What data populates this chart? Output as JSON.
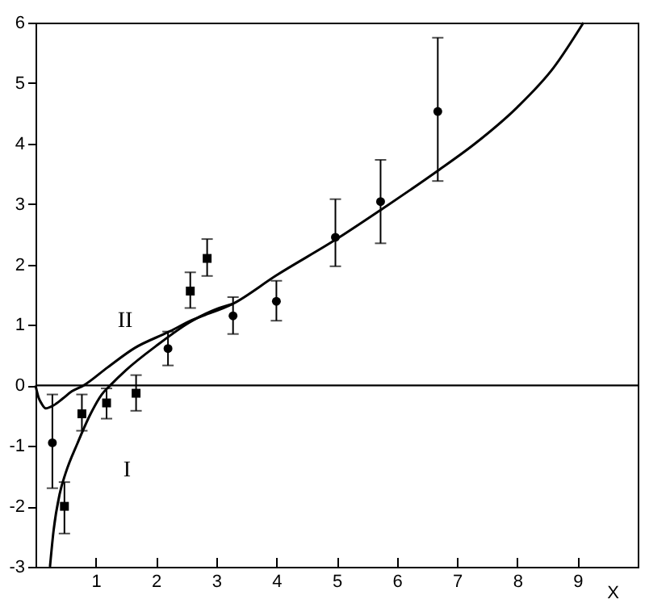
{
  "chart_data": {
    "type": "scatter",
    "xlabel": "X",
    "xlim": [
      0,
      10
    ],
    "xticks": [
      1,
      2,
      3,
      4,
      5,
      6,
      7,
      8,
      9
    ],
    "ylim": [
      -3,
      6
    ],
    "yticks": [
      -3,
      -2,
      -1,
      0,
      1,
      2,
      3,
      4,
      5,
      6
    ],
    "grid": false,
    "series": [
      {
        "marker": "circle",
        "color": "#000000",
        "x": [
          0.28,
          2.2,
          3.28,
          4.0,
          4.98,
          5.73,
          6.68
        ],
        "values": [
          -0.95,
          0.61,
          1.15,
          1.39,
          2.45,
          3.04,
          4.53
        ],
        "errors": [
          [
            -1.7,
            -0.15
          ],
          [
            0.33,
            0.89
          ],
          [
            0.85,
            1.46
          ],
          [
            1.07,
            1.73
          ],
          [
            1.97,
            3.08
          ],
          [
            2.35,
            3.73
          ],
          [
            3.38,
            5.75
          ]
        ]
      },
      {
        "marker": "square",
        "color": "#000000",
        "x": [
          0.48,
          0.77,
          1.18,
          1.67,
          2.57,
          2.85
        ],
        "values": [
          -2.0,
          -0.47,
          -0.29,
          -0.13,
          1.56,
          2.1
        ],
        "errors": [
          [
            -2.45,
            -1.6
          ],
          [
            -0.75,
            -0.15
          ],
          [
            -0.55,
            -0.05
          ],
          [
            -0.42,
            0.17
          ],
          [
            1.28,
            1.87
          ],
          [
            1.81,
            2.42
          ]
        ]
      },
      {
        "type": "line",
        "name": "II",
        "color": "#000000",
        "x": [
          0,
          0.05,
          0.1,
          0.17,
          0.3,
          0.45,
          0.6,
          0.8,
          1.2,
          1.65,
          2.2,
          2.6,
          3.28,
          4.0,
          5.0,
          5.73,
          6.68,
          7.3,
          8.0,
          8.6,
          9.1
        ],
        "values": [
          0,
          -0.2,
          -0.3,
          -0.38,
          -0.33,
          -0.22,
          -0.1,
          0,
          0.3,
          0.62,
          0.88,
          1.08,
          1.35,
          1.82,
          2.42,
          2.9,
          3.55,
          4.0,
          4.6,
          5.25,
          6.0
        ]
      },
      {
        "type": "line",
        "name": "I",
        "color": "#000000",
        "x": [
          0.24,
          0.3,
          0.4,
          0.5,
          0.7,
          0.9,
          1.1,
          1.24,
          1.5,
          2.0,
          2.57,
          3.0,
          3.28
        ],
        "values": [
          -3,
          -2.4,
          -1.8,
          -1.45,
          -0.95,
          -0.5,
          -0.15,
          0,
          0.25,
          0.65,
          1.05,
          1.26,
          1.35
        ]
      }
    ],
    "ref_lines": [
      {
        "axis": "y",
        "value": 0,
        "color": "#000000"
      }
    ]
  }
}
